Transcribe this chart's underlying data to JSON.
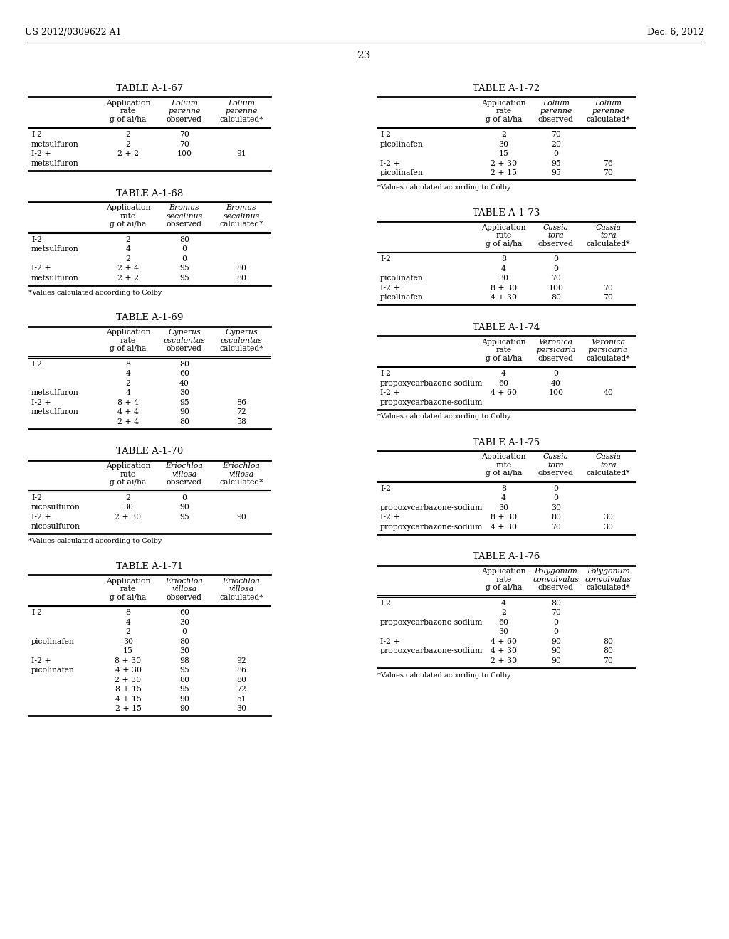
{
  "header_left": "US 2012/0309622 A1",
  "header_right": "Dec. 6, 2012",
  "page_number": "23",
  "left_tables": [
    {
      "title": "TABLE A-1-67",
      "headers": [
        "",
        "Application\nrate\ng of ai/ha",
        "Lolium\nperenne\nobserved",
        "Lolium\nperenne\ncalculated*"
      ],
      "header_italic": [
        false,
        false,
        true,
        true
      ],
      "rows": [
        [
          "I-2",
          "2",
          "70",
          ""
        ],
        [
          "metsulfuron",
          "2",
          "70",
          ""
        ],
        [
          "I-2 +",
          "2 + 2",
          "100",
          "91"
        ],
        [
          "metsulfuron",
          "",
          "",
          ""
        ]
      ],
      "footnote": ""
    },
    {
      "title": "TABLE A-1-68",
      "headers": [
        "",
        "Application\nrate\ng of ai/ha",
        "Bromus\nsecalinus\nobserved",
        "Bromus\nsecalinus\ncalculated*"
      ],
      "header_italic": [
        false,
        false,
        true,
        true
      ],
      "rows": [
        [
          "I-2",
          "2",
          "80",
          ""
        ],
        [
          "metsulfuron",
          "4",
          "0",
          ""
        ],
        [
          "",
          "2",
          "0",
          ""
        ],
        [
          "I-2 +",
          "2 + 4",
          "95",
          "80"
        ],
        [
          "metsulfuron",
          "2 + 2",
          "95",
          "80"
        ]
      ],
      "footnote": "*Values calculated according to Colby"
    },
    {
      "title": "TABLE A-1-69",
      "headers": [
        "",
        "Application\nrate\ng of ai/ha",
        "Cyperus\nesculentus\nobserved",
        "Cyperus\nesculentus\ncalculated*"
      ],
      "header_italic": [
        false,
        false,
        true,
        true
      ],
      "rows": [
        [
          "I-2",
          "8",
          "80",
          ""
        ],
        [
          "",
          "4",
          "60",
          ""
        ],
        [
          "",
          "2",
          "40",
          ""
        ],
        [
          "metsulfuron",
          "4",
          "30",
          ""
        ],
        [
          "I-2 +",
          "8 + 4",
          "95",
          "86"
        ],
        [
          "metsulfuron",
          "4 + 4",
          "90",
          "72"
        ],
        [
          "",
          "2 + 4",
          "80",
          "58"
        ]
      ],
      "footnote": ""
    },
    {
      "title": "TABLE A-1-70",
      "headers": [
        "",
        "Application\nrate\ng of ai/ha",
        "Eriochloa\nvillosa\nobserved",
        "Eriochloa\nvillosa\ncalculated*"
      ],
      "header_italic": [
        false,
        false,
        true,
        true
      ],
      "rows": [
        [
          "I-2",
          "2",
          "0",
          ""
        ],
        [
          "nicosulfuron",
          "30",
          "90",
          ""
        ],
        [
          "I-2 +",
          "2 + 30",
          "95",
          "90"
        ],
        [
          "nicosulfuron",
          "",
          "",
          ""
        ]
      ],
      "footnote": "*Values calculated according to Colby"
    },
    {
      "title": "TABLE A-1-71",
      "headers": [
        "",
        "Application\nrate\ng of ai/ha",
        "Eriochloa\nvillosa\nobserved",
        "Eriochloa\nvillosa\ncalculated*"
      ],
      "header_italic": [
        false,
        false,
        true,
        true
      ],
      "rows": [
        [
          "I-2",
          "8",
          "60",
          ""
        ],
        [
          "",
          "4",
          "30",
          ""
        ],
        [
          "",
          "2",
          "0",
          ""
        ],
        [
          "picolinafen",
          "30",
          "80",
          ""
        ],
        [
          "",
          "15",
          "30",
          ""
        ],
        [
          "I-2 +",
          "8 + 30",
          "98",
          "92"
        ],
        [
          "picolinafen",
          "4 + 30",
          "95",
          "86"
        ],
        [
          "",
          "2 + 30",
          "80",
          "80"
        ],
        [
          "",
          "8 + 15",
          "95",
          "72"
        ],
        [
          "",
          "4 + 15",
          "90",
          "51"
        ],
        [
          "",
          "2 + 15",
          "90",
          "30"
        ]
      ],
      "footnote": ""
    }
  ],
  "right_tables": [
    {
      "title": "TABLE A-1-72",
      "headers": [
        "",
        "Application\nrate\ng of ai/ha",
        "Lolium\nperenne\nobserved",
        "Lolium\nperenne\ncalculated*"
      ],
      "header_italic": [
        false,
        false,
        true,
        true
      ],
      "rows": [
        [
          "I-2",
          "2",
          "70",
          ""
        ],
        [
          "picolinafen",
          "30",
          "20",
          ""
        ],
        [
          "",
          "15",
          "0",
          ""
        ],
        [
          "I-2 +",
          "2 + 30",
          "95",
          "76"
        ],
        [
          "picolinafen",
          "2 + 15",
          "95",
          "70"
        ]
      ],
      "footnote": "*Values calculated according to Colby"
    },
    {
      "title": "TABLE A-1-73",
      "headers": [
        "",
        "Application\nrate\ng of ai/ha",
        "Cassia\ntora\nobserved",
        "Cassia\ntora\ncalculated*"
      ],
      "header_italic": [
        false,
        false,
        true,
        true
      ],
      "rows": [
        [
          "I-2",
          "8",
          "0",
          ""
        ],
        [
          "",
          "4",
          "0",
          ""
        ],
        [
          "picolinafen",
          "30",
          "70",
          ""
        ],
        [
          "I-2 +",
          "8 + 30",
          "100",
          "70"
        ],
        [
          "picolinafen",
          "4 + 30",
          "80",
          "70"
        ]
      ],
      "footnote": ""
    },
    {
      "title": "TABLE A-1-74",
      "headers": [
        "",
        "Application\nrate\ng of ai/ha",
        "Veronica\npersicaria\nobserved",
        "Veronica\npersicaria\ncalculated*"
      ],
      "header_italic": [
        false,
        false,
        true,
        true
      ],
      "rows": [
        [
          "I-2",
          "4",
          "0",
          ""
        ],
        [
          "propoxycarbazone-sodium",
          "60",
          "40",
          ""
        ],
        [
          "I-2 +",
          "4 + 60",
          "100",
          "40"
        ],
        [
          "propoxycarbazone-sodium",
          "",
          "",
          ""
        ]
      ],
      "footnote": "*Values calculated according to Colby"
    },
    {
      "title": "TABLE A-1-75",
      "headers": [
        "",
        "Application\nrate\ng of ai/ha",
        "Cassia\ntora\nobserved",
        "Cassia\ntora\ncalculated*"
      ],
      "header_italic": [
        false,
        false,
        true,
        true
      ],
      "rows": [
        [
          "I-2",
          "8",
          "0",
          ""
        ],
        [
          "",
          "4",
          "0",
          ""
        ],
        [
          "propoxycarbazone-sodium",
          "30",
          "30",
          ""
        ],
        [
          "I-2 +",
          "8 + 30",
          "80",
          "30"
        ],
        [
          "propoxycarbazone-sodium",
          "4 + 30",
          "70",
          "30"
        ]
      ],
      "footnote": ""
    },
    {
      "title": "TABLE A-1-76",
      "headers": [
        "",
        "Application\nrate\ng of ai/ha",
        "Polygonum\nconvolvulus\nobserved",
        "Polygonum\nconvolvulus\ncalculated*"
      ],
      "header_italic": [
        false,
        false,
        true,
        true
      ],
      "rows": [
        [
          "I-2",
          "4",
          "80",
          ""
        ],
        [
          "",
          "2",
          "70",
          ""
        ],
        [
          "propoxycarbazone-sodium",
          "60",
          "0",
          ""
        ],
        [
          "",
          "30",
          "0",
          ""
        ],
        [
          "I-2 +",
          "4 + 60",
          "90",
          "80"
        ],
        [
          "propoxycarbazone-sodium",
          "4 + 30",
          "90",
          "80"
        ],
        [
          "",
          "2 + 30",
          "90",
          "70"
        ]
      ],
      "footnote": "*Values calculated according to Colby"
    }
  ]
}
